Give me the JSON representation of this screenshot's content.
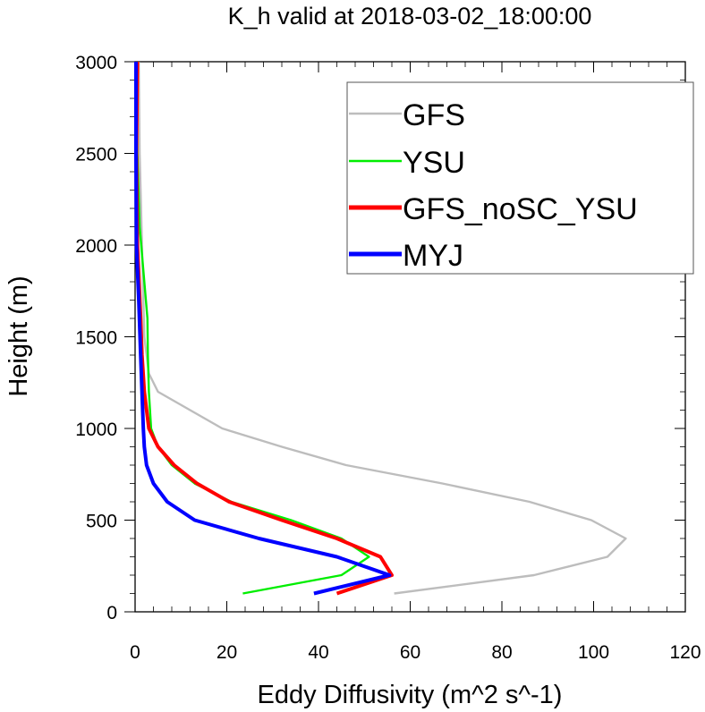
{
  "chart_data": {
    "type": "line",
    "title": "K_h valid at 2018-03-02_18:00:00",
    "xlabel": "Eddy Diffusivity (m^2 s^-1)",
    "ylabel": "Height (m)",
    "xlim": [
      0,
      120
    ],
    "ylim": [
      0,
      3000
    ],
    "x_ticks": [
      "0",
      "20",
      "40",
      "60",
      "80",
      "100",
      "120"
    ],
    "y_ticks": [
      "0",
      "500",
      "1000",
      "1500",
      "2000",
      "2500",
      "3000"
    ],
    "legend_position": "top-right",
    "series": [
      {
        "name": "GFS",
        "color": "#bdbdbd",
        "width": "thin",
        "points": [
          [
            56.5,
            100
          ],
          [
            87,
            200
          ],
          [
            103,
            300
          ],
          [
            107,
            400
          ],
          [
            99.5,
            500
          ],
          [
            86,
            600
          ],
          [
            67,
            700
          ],
          [
            46,
            800
          ],
          [
            32,
            900
          ],
          [
            19,
            1000
          ],
          [
            5,
            1200
          ],
          [
            3,
            1300
          ],
          [
            2,
            1500
          ],
          [
            1.5,
            2000
          ],
          [
            1,
            2500
          ],
          [
            0.8,
            3000
          ]
        ]
      },
      {
        "name": "YSU",
        "color": "#00ee00",
        "width": "thin",
        "points": [
          [
            23.5,
            100
          ],
          [
            45,
            200
          ],
          [
            51,
            300
          ],
          [
            45,
            400
          ],
          [
            34,
            500
          ],
          [
            21,
            600
          ],
          [
            13,
            700
          ],
          [
            8,
            800
          ],
          [
            5,
            900
          ],
          [
            3.5,
            1000
          ],
          [
            3,
            1200
          ],
          [
            2.8,
            1400
          ],
          [
            2.7,
            1600
          ],
          [
            2,
            1800
          ],
          [
            1,
            2100
          ],
          [
            0.5,
            2500
          ],
          [
            0.3,
            3000
          ]
        ]
      },
      {
        "name": "GFS_noSC_YSU",
        "color": "#ff0000",
        "width": "thick",
        "points": [
          [
            44,
            100
          ],
          [
            56,
            200
          ],
          [
            53.5,
            300
          ],
          [
            44,
            400
          ],
          [
            32,
            500
          ],
          [
            20.5,
            600
          ],
          [
            13.5,
            700
          ],
          [
            8.5,
            800
          ],
          [
            5,
            900
          ],
          [
            3,
            1000
          ],
          [
            2,
            1200
          ],
          [
            1.5,
            1400
          ],
          [
            1.2,
            1600
          ],
          [
            0.5,
            2000
          ],
          [
            0.3,
            2500
          ],
          [
            0.5,
            3000
          ]
        ]
      },
      {
        "name": "MYJ",
        "color": "#0000ff",
        "width": "thick",
        "points": [
          [
            39,
            100
          ],
          [
            55.5,
            200
          ],
          [
            44,
            300
          ],
          [
            27,
            400
          ],
          [
            13,
            500
          ],
          [
            7,
            600
          ],
          [
            4,
            700
          ],
          [
            2.5,
            800
          ],
          [
            2,
            900
          ],
          [
            1.8,
            1000
          ],
          [
            1.5,
            1200
          ],
          [
            1.2,
            1400
          ],
          [
            0.8,
            1700
          ],
          [
            0.3,
            2000
          ],
          [
            0.2,
            2500
          ],
          [
            0.2,
            3000
          ]
        ]
      }
    ]
  }
}
